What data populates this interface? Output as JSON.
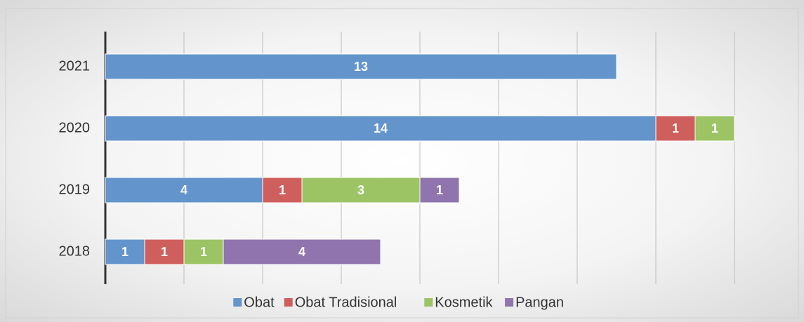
{
  "chart_data": {
    "type": "stacked-barh",
    "categories": [
      "2021",
      "2020",
      "2019",
      "2018"
    ],
    "series": [
      {
        "name": "Obat",
        "color": "#6394cb",
        "values": [
          13,
          14,
          4,
          1
        ]
      },
      {
        "name": "Obat Tradisional",
        "color": "#cf5f5c",
        "values": [
          null,
          1,
          1,
          1
        ]
      },
      {
        "name": "Kosmetik",
        "color": "#9cc465",
        "values": [
          null,
          1,
          3,
          1
        ]
      },
      {
        "name": "Pangan",
        "color": "#8f74ad",
        "values": [
          null,
          null,
          1,
          4
        ]
      }
    ],
    "xlim": [
      0,
      16
    ],
    "xticks": [
      0,
      2,
      4,
      6,
      8,
      10,
      12,
      14,
      16
    ],
    "grid": true,
    "legend": "bottom"
  }
}
